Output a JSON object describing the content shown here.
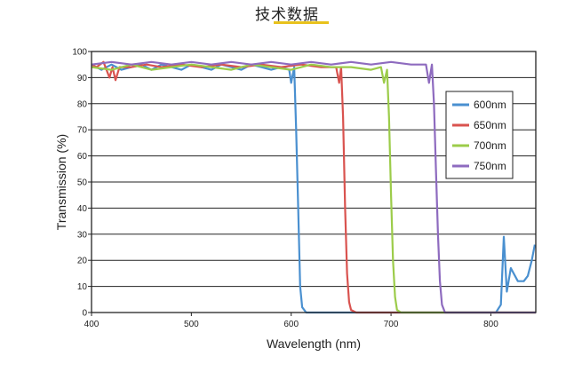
{
  "page": {
    "title": "技术数据"
  },
  "chart_data": {
    "type": "line",
    "title": "",
    "xlabel": "Wavelength (nm)",
    "ylabel": "Transmission (%)",
    "xlim": [
      400,
      845
    ],
    "ylim": [
      0,
      100
    ],
    "xticks": [
      400,
      500,
      600,
      700,
      800
    ],
    "yticks": [
      0,
      10,
      20,
      30,
      40,
      50,
      60,
      70,
      80,
      90,
      100
    ],
    "grid": "horizontal",
    "legend_position": "right",
    "series": [
      {
        "name": "600nm",
        "color": "#4a90d0",
        "points": [
          [
            400,
            95
          ],
          [
            410,
            93
          ],
          [
            420,
            95
          ],
          [
            430,
            93
          ],
          [
            440,
            94
          ],
          [
            450,
            95
          ],
          [
            460,
            93
          ],
          [
            470,
            95
          ],
          [
            480,
            94
          ],
          [
            490,
            93
          ],
          [
            500,
            95
          ],
          [
            510,
            94
          ],
          [
            520,
            93
          ],
          [
            530,
            95
          ],
          [
            540,
            94
          ],
          [
            550,
            93
          ],
          [
            560,
            95
          ],
          [
            570,
            94
          ],
          [
            580,
            93
          ],
          [
            590,
            94
          ],
          [
            598,
            93
          ],
          [
            600,
            88
          ],
          [
            603,
            94
          ],
          [
            605,
            70
          ],
          [
            607,
            40
          ],
          [
            609,
            10
          ],
          [
            611,
            2
          ],
          [
            615,
            0
          ],
          [
            640,
            0
          ],
          [
            680,
            0
          ],
          [
            720,
            0
          ],
          [
            760,
            0
          ],
          [
            790,
            0
          ],
          [
            805,
            0
          ],
          [
            810,
            3
          ],
          [
            813,
            29
          ],
          [
            816,
            8
          ],
          [
            820,
            17
          ],
          [
            827,
            12
          ],
          [
            833,
            12
          ],
          [
            837,
            14
          ],
          [
            841,
            20
          ],
          [
            844,
            26
          ]
        ]
      },
      {
        "name": "650nm",
        "color": "#d9534f",
        "points": [
          [
            400,
            95
          ],
          [
            405,
            94
          ],
          [
            412,
            96
          ],
          [
            418,
            90
          ],
          [
            421,
            94
          ],
          [
            424,
            89
          ],
          [
            428,
            94
          ],
          [
            440,
            94
          ],
          [
            455,
            95
          ],
          [
            470,
            94
          ],
          [
            490,
            95
          ],
          [
            510,
            94
          ],
          [
            530,
            95
          ],
          [
            550,
            94
          ],
          [
            570,
            95
          ],
          [
            590,
            94
          ],
          [
            610,
            95
          ],
          [
            630,
            94
          ],
          [
            645,
            94
          ],
          [
            648,
            88
          ],
          [
            650,
            94
          ],
          [
            652,
            75
          ],
          [
            654,
            40
          ],
          [
            656,
            15
          ],
          [
            658,
            4
          ],
          [
            660,
            1
          ],
          [
            665,
            0
          ],
          [
            700,
            0
          ],
          [
            740,
            0
          ],
          [
            780,
            0
          ],
          [
            820,
            0
          ],
          [
            845,
            0
          ]
        ]
      },
      {
        "name": "700nm",
        "color": "#9ccc4a",
        "points": [
          [
            400,
            94
          ],
          [
            420,
            93
          ],
          [
            440,
            95
          ],
          [
            460,
            93
          ],
          [
            480,
            94
          ],
          [
            500,
            95
          ],
          [
            520,
            94
          ],
          [
            540,
            93
          ],
          [
            560,
            95
          ],
          [
            580,
            94
          ],
          [
            600,
            93
          ],
          [
            620,
            95
          ],
          [
            640,
            94
          ],
          [
            660,
            94
          ],
          [
            680,
            93
          ],
          [
            690,
            94
          ],
          [
            693,
            88
          ],
          [
            696,
            93
          ],
          [
            698,
            75
          ],
          [
            700,
            45
          ],
          [
            702,
            20
          ],
          [
            704,
            6
          ],
          [
            706,
            1
          ],
          [
            710,
            0
          ],
          [
            740,
            0
          ],
          [
            780,
            0
          ],
          [
            820,
            0
          ],
          [
            845,
            0
          ]
        ]
      },
      {
        "name": "750nm",
        "color": "#8e6bbf",
        "points": [
          [
            400,
            95
          ],
          [
            420,
            96
          ],
          [
            440,
            95
          ],
          [
            460,
            96
          ],
          [
            480,
            95
          ],
          [
            500,
            96
          ],
          [
            520,
            95
          ],
          [
            540,
            96
          ],
          [
            560,
            95
          ],
          [
            580,
            96
          ],
          [
            600,
            95
          ],
          [
            620,
            96
          ],
          [
            640,
            95
          ],
          [
            660,
            96
          ],
          [
            680,
            95
          ],
          [
            700,
            96
          ],
          [
            720,
            95
          ],
          [
            735,
            95
          ],
          [
            738,
            88
          ],
          [
            741,
            95
          ],
          [
            743,
            80
          ],
          [
            745,
            55
          ],
          [
            747,
            30
          ],
          [
            749,
            12
          ],
          [
            751,
            3
          ],
          [
            754,
            0
          ],
          [
            780,
            0
          ],
          [
            810,
            0
          ],
          [
            845,
            0
          ]
        ]
      }
    ]
  }
}
